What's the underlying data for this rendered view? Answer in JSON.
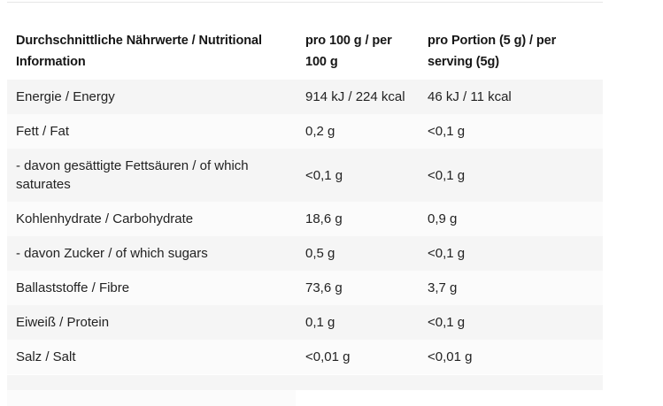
{
  "page": {
    "background_color": "#ffffff",
    "text_color": "#1d1d1d",
    "divider_color": "#e7e7e7"
  },
  "table": {
    "colors": {
      "row_odd_background": "#f5f5f5",
      "row_even_background": "#fbfbfb",
      "header_background": "#ffffff",
      "top_border": "#e7e7e7"
    },
    "header": {
      "col1": "Durchschnittliche Nährwerte / Nutritional Information",
      "col2": "pro 100 g / per 100 g",
      "col3": "pro Portion (5 g) / per serving (5g)"
    },
    "rows": [
      {
        "label": "Energie / Energy",
        "per100": "914 kJ / 224 kcal",
        "perServing": "46 kJ / 11 kcal"
      },
      {
        "label": "Fett / Fat",
        "per100": "0,2 g",
        "perServing": "<0,1 g"
      },
      {
        "label": "- davon gesättigte Fettsäuren / of which saturates",
        "per100": "<0,1 g",
        "perServing": "<0,1 g"
      },
      {
        "label": "Kohlenhydrate / Carbohydrate",
        "per100": "18,6 g",
        "perServing": "0,9 g"
      },
      {
        "label": "- davon Zucker / of which sugars",
        "per100": "0,5 g",
        "perServing": "<0,1 g"
      },
      {
        "label": "Ballaststoffe / Fibre",
        "per100": "73,6 g",
        "perServing": "3,7 g"
      },
      {
        "label": "Eiweiß / Protein",
        "per100": "0,1 g",
        "perServing": "<0,1 g"
      },
      {
        "label": "Salz / Salt",
        "per100": "<0,01 g",
        "perServing": "<0,01 g"
      }
    ]
  }
}
